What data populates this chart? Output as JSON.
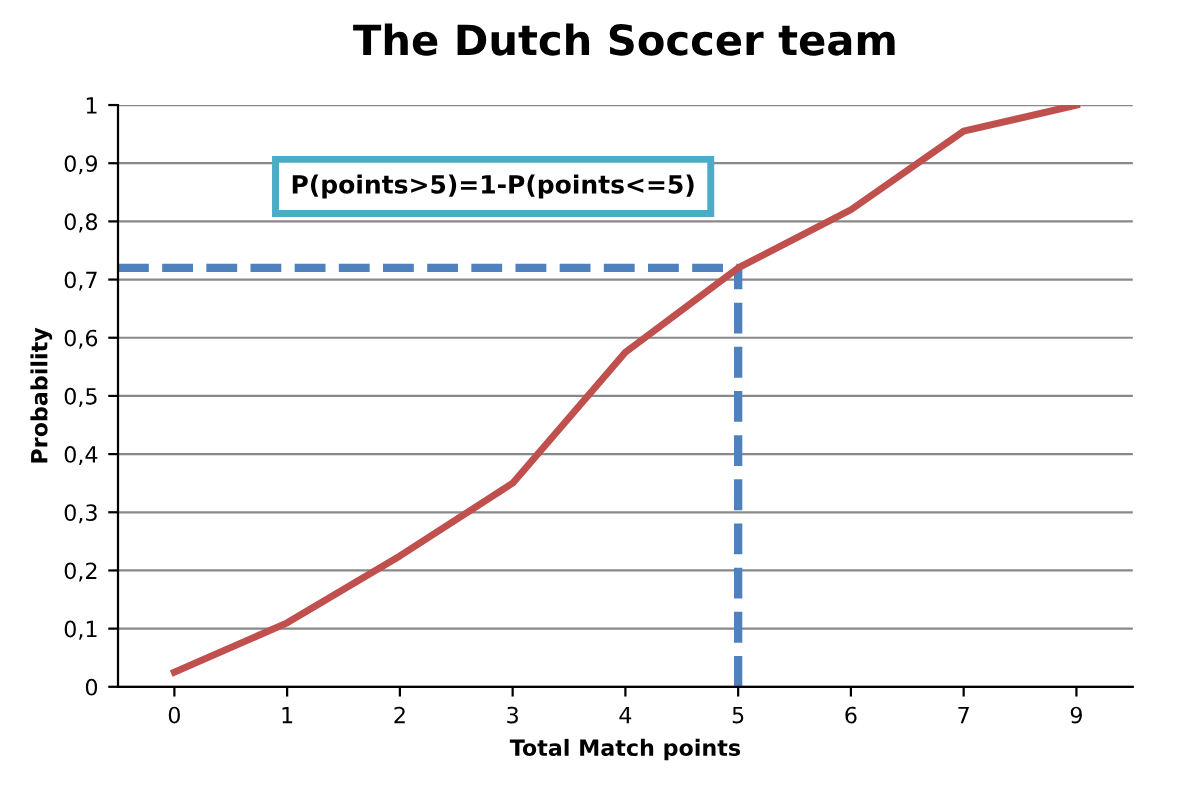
{
  "chart_data": {
    "type": "line",
    "title": "The Dutch Soccer team",
    "xlabel": "Total Match points",
    "ylabel": "Probability",
    "categories": [
      "0",
      "1",
      "2",
      "3",
      "4",
      "5",
      "6",
      "7",
      "9"
    ],
    "series": [
      {
        "color": "#c0504d",
        "values": [
          0.025,
          0.11,
          0.225,
          0.35,
          0.575,
          0.72,
          0.82,
          0.955,
          1.0
        ]
      }
    ],
    "ylim": [
      0,
      1
    ],
    "yticks": [
      0,
      {
        "value": 0.1,
        "label": "0,1"
      },
      {
        "value": 0.2,
        "label": "0,2"
      },
      {
        "value": 0.3,
        "label": "0,3"
      },
      {
        "value": 0.4,
        "label": "0,4"
      },
      {
        "value": 0.5,
        "label": "0,5"
      },
      {
        "value": 0.6,
        "label": "0,6"
      },
      {
        "value": 0.7,
        "label": "0,7"
      },
      {
        "value": 0.8,
        "label": "0,8"
      },
      {
        "value": 0.9,
        "label": "0,9"
      },
      1
    ],
    "grid": "y",
    "legend": false,
    "marker": "none",
    "line_style": "solid",
    "ref_lines": [
      {
        "axis": "y",
        "value": 0.72,
        "color": "#4f81bd",
        "line_style": "dashed"
      },
      {
        "axis": "x",
        "value": "5",
        "color": "#4f81bd",
        "line_style": "dashed"
      }
    ],
    "annotations": [
      "P(points>5)=1-P(points<=5)"
    ]
  }
}
